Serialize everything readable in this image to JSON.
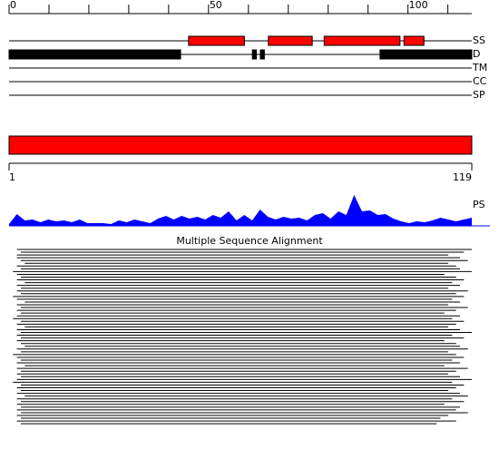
{
  "ruler": {
    "range": [
      0,
      116
    ],
    "ticks": [
      0,
      10,
      20,
      30,
      40,
      50,
      60,
      70,
      80,
      90,
      100,
      110
    ],
    "labels": [
      0,
      50,
      100
    ]
  },
  "tracks": [
    {
      "label": "SS",
      "color": "#ff0000",
      "features": [
        [
          45,
          59
        ],
        [
          65,
          76
        ],
        [
          79,
          98
        ],
        [
          99,
          104
        ]
      ]
    },
    {
      "label": "D",
      "color": "#000000",
      "features": [
        [
          0,
          43
        ],
        [
          61,
          62
        ],
        [
          63,
          64
        ],
        [
          93,
          116
        ]
      ]
    },
    {
      "label": "TM",
      "color": "#000000",
      "features": []
    },
    {
      "label": "CC",
      "color": "#000000",
      "features": []
    },
    {
      "label": "SP",
      "color": "#000000",
      "features": []
    }
  ],
  "domain_bar": {
    "range": [
      1,
      119
    ],
    "color": "#ff0000"
  },
  "profile": {
    "label": "PS",
    "color": "#0000ff",
    "values": [
      2,
      13,
      6,
      7,
      4,
      7,
      5,
      6,
      4,
      7,
      3,
      3,
      3,
      2,
      6,
      4,
      7,
      5,
      3,
      8,
      11,
      7,
      11,
      8,
      10,
      7,
      12,
      9,
      16,
      6,
      12,
      6,
      18,
      10,
      7,
      10,
      8,
      9,
      6,
      12,
      14,
      8,
      16,
      12,
      34,
      16,
      17,
      12,
      13,
      8,
      5,
      3,
      5,
      4,
      6,
      9,
      7,
      5,
      7,
      9
    ]
  },
  "alignment": {
    "title": "Multiple Sequence Alignment",
    "rows": [
      [
        3,
        119
      ],
      [
        4,
        117
      ],
      [
        3,
        113
      ],
      [
        3,
        116
      ],
      [
        4,
        118
      ],
      [
        5,
        113
      ],
      [
        3,
        115
      ],
      [
        4,
        116
      ],
      [
        2,
        119
      ],
      [
        3,
        112
      ],
      [
        4,
        115
      ],
      [
        3,
        117
      ],
      [
        5,
        114
      ],
      [
        3,
        116
      ],
      [
        4,
        113
      ],
      [
        3,
        118
      ],
      [
        4,
        115
      ],
      [
        2,
        117
      ],
      [
        3,
        114
      ],
      [
        5,
        116
      ],
      [
        3,
        113
      ],
      [
        4,
        118
      ],
      [
        3,
        115
      ],
      [
        4,
        112
      ],
      [
        3,
        116
      ],
      [
        2,
        114
      ],
      [
        4,
        117
      ],
      [
        3,
        115
      ],
      [
        5,
        113
      ],
      [
        3,
        116
      ],
      [
        4,
        119
      ],
      [
        3,
        114
      ],
      [
        4,
        117
      ],
      [
        3,
        112
      ],
      [
        4,
        115
      ],
      [
        5,
        116
      ],
      [
        3,
        118
      ],
      [
        4,
        113
      ],
      [
        2,
        115
      ],
      [
        3,
        117
      ],
      [
        4,
        114
      ],
      [
        3,
        116
      ],
      [
        5,
        112
      ],
      [
        3,
        118
      ],
      [
        4,
        115
      ],
      [
        3,
        113
      ],
      [
        4,
        116
      ],
      [
        3,
        119
      ],
      [
        2,
        114
      ],
      [
        4,
        117
      ],
      [
        3,
        115
      ],
      [
        4,
        113
      ],
      [
        3,
        116
      ],
      [
        5,
        118
      ],
      [
        3,
        114
      ],
      [
        4,
        117
      ],
      [
        3,
        112
      ],
      [
        4,
        116
      ],
      [
        3,
        115
      ],
      [
        4,
        118
      ],
      [
        3,
        113
      ],
      [
        4,
        111
      ],
      [
        3,
        115
      ],
      [
        4,
        110
      ]
    ]
  }
}
